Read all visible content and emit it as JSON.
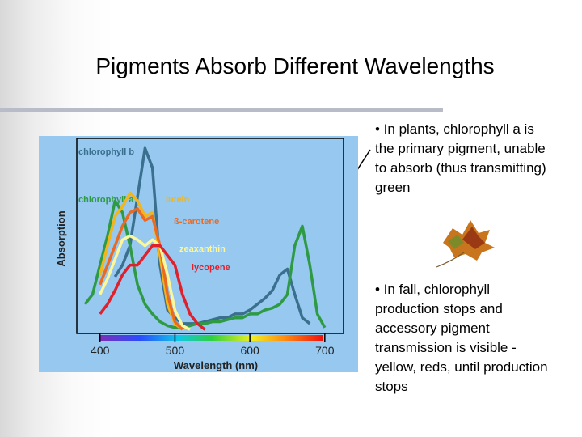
{
  "slide": {
    "title": "Pigments Absorb Different Wavelengths",
    "bullets": [
      "• In plants, chlorophyll a is the primary pigment, unable to absorb (thus transmitting) green",
      "• In fall, chlorophyll production stops and accessory pigment transmission is visible - yellow, reds, until production stops"
    ]
  },
  "chart_data": {
    "type": "line",
    "xlabel": "Wavelength (nm)",
    "ylabel": "Absorption",
    "x": [
      380,
      390,
      400,
      410,
      420,
      430,
      440,
      450,
      460,
      470,
      480,
      490,
      500,
      510,
      520,
      530,
      540,
      550,
      560,
      570,
      580,
      590,
      600,
      610,
      620,
      630,
      640,
      650,
      660,
      670,
      680,
      690,
      700,
      710
    ],
    "xlim": [
      369,
      725
    ],
    "xticks": [
      400,
      500,
      600,
      700
    ],
    "ylim": [
      0,
      1
    ],
    "series": [
      {
        "name": "chlorophyll b",
        "color": "#3b6f8e",
        "values": [
          null,
          null,
          null,
          null,
          0.29,
          0.35,
          0.45,
          0.7,
          0.95,
          0.85,
          0.35,
          0.12,
          0.08,
          0.05,
          0.05,
          0.05,
          0.06,
          0.07,
          0.08,
          0.08,
          0.1,
          0.1,
          0.12,
          0.15,
          0.18,
          0.22,
          0.3,
          0.33,
          0.2,
          0.08,
          0.05,
          null,
          null,
          null
        ]
      },
      {
        "name": "chlorophyll a",
        "color": "#2f9a44",
        "values": [
          0.15,
          0.2,
          0.35,
          0.5,
          0.68,
          0.62,
          0.45,
          0.25,
          0.15,
          0.1,
          0.06,
          0.04,
          0.03,
          0.03,
          0.04,
          0.05,
          0.05,
          0.06,
          0.06,
          0.07,
          0.08,
          0.08,
          0.1,
          0.1,
          0.12,
          0.13,
          0.15,
          0.2,
          0.45,
          0.55,
          0.35,
          0.1,
          0.03,
          null
        ]
      },
      {
        "name": "lutein",
        "color": "#f2b51c",
        "values": [
          null,
          null,
          0.3,
          0.45,
          0.6,
          0.65,
          0.72,
          0.68,
          0.6,
          0.62,
          0.4,
          0.15,
          0.05,
          0.02,
          null,
          null,
          null,
          null,
          null,
          null,
          null,
          null,
          null,
          null,
          null,
          null,
          null,
          null,
          null,
          null,
          null,
          null,
          null,
          null
        ]
      },
      {
        "name": "ß-carotene",
        "color": "#ea6a22",
        "values": [
          null,
          null,
          0.25,
          0.35,
          0.45,
          0.55,
          0.62,
          0.64,
          0.58,
          0.6,
          0.45,
          0.2,
          0.06,
          0.02,
          null,
          null,
          null,
          null,
          null,
          null,
          null,
          null,
          null,
          null,
          null,
          null,
          null,
          null,
          null,
          null,
          null,
          null,
          null,
          null
        ]
      },
      {
        "name": "zeaxanthin",
        "color": "#fbf79a",
        "values": [
          null,
          null,
          0.2,
          0.28,
          0.38,
          0.48,
          0.5,
          0.48,
          0.45,
          0.48,
          0.45,
          0.3,
          0.12,
          0.04,
          0.02,
          null,
          null,
          null,
          null,
          null,
          null,
          null,
          null,
          null,
          null,
          null,
          null,
          null,
          null,
          null,
          null,
          null,
          null,
          null
        ]
      },
      {
        "name": "lycopene",
        "color": "#e0202a",
        "values": [
          null,
          null,
          0.1,
          0.15,
          0.22,
          0.3,
          0.35,
          0.35,
          0.4,
          0.45,
          0.45,
          0.4,
          0.35,
          0.2,
          0.1,
          0.05,
          0.02,
          null,
          null,
          null,
          null,
          null,
          null,
          null,
          null,
          null,
          null,
          null,
          null,
          null,
          null,
          null,
          null,
          null
        ]
      }
    ]
  }
}
